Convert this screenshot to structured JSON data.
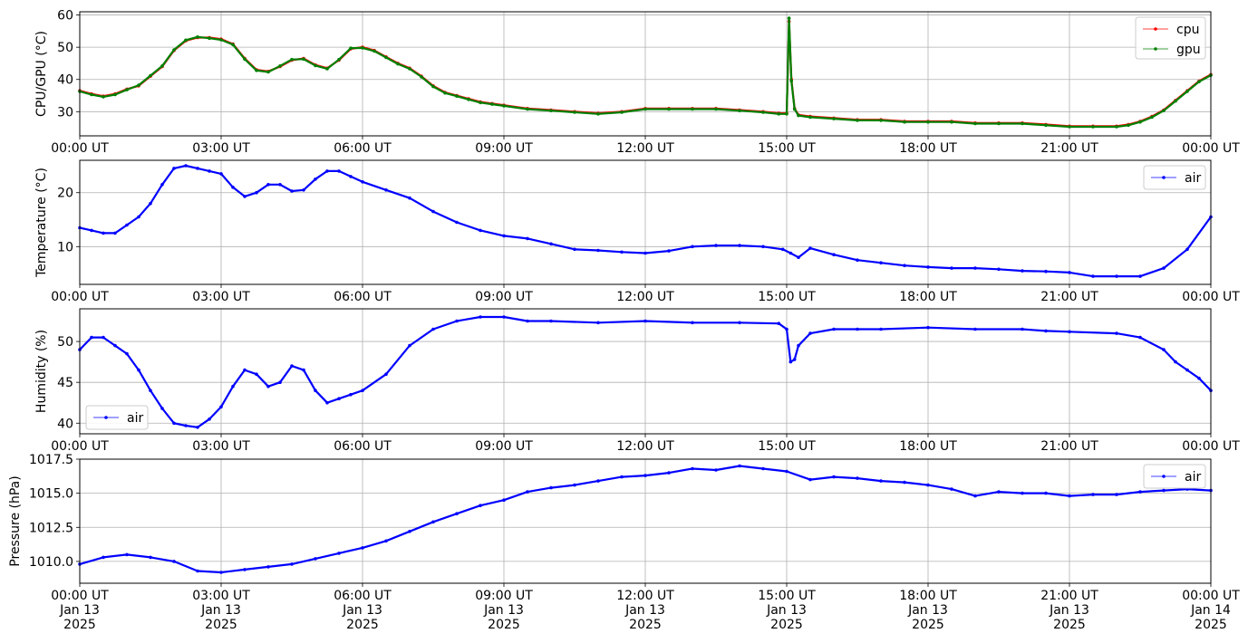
{
  "chart_data": [
    {
      "type": "line",
      "ylabel": "CPU/GPU (°C)",
      "ylim": [
        22.5,
        61
      ],
      "yticks": [
        30,
        40,
        50,
        60
      ],
      "grid": true,
      "legend_position": "upper-right",
      "x_tick_labels": [
        "00:00 UT",
        "03:00 UT",
        "06:00 UT",
        "09:00 UT",
        "12:00 UT",
        "15:00 UT",
        "18:00 UT",
        "21:00 UT",
        "00:00 UT"
      ],
      "series": [
        {
          "name": "cpu",
          "color": "#ff0000",
          "x": [
            "00:00",
            "00:15",
            "00:30",
            "00:45",
            "01:00",
            "01:15",
            "01:30",
            "01:45",
            "02:00",
            "02:15",
            "02:30",
            "02:45",
            "03:00",
            "03:15",
            "03:30",
            "03:45",
            "04:00",
            "04:15",
            "04:30",
            "04:45",
            "05:00",
            "05:15",
            "05:30",
            "05:45",
            "06:00",
            "06:15",
            "06:30",
            "06:45",
            "07:00",
            "07:15",
            "07:30",
            "07:45",
            "08:00",
            "08:15",
            "08:30",
            "08:45",
            "09:00",
            "09:30",
            "10:00",
            "10:30",
            "11:00",
            "11:30",
            "12:00",
            "12:30",
            "13:00",
            "13:30",
            "14:00",
            "14:30",
            "14:50",
            "15:00",
            "15:03",
            "15:06",
            "15:10",
            "15:15",
            "15:30",
            "16:00",
            "16:30",
            "17:00",
            "17:30",
            "18:00",
            "18:30",
            "19:00",
            "19:30",
            "20:00",
            "20:30",
            "21:00",
            "21:30",
            "22:00",
            "22:15",
            "22:30",
            "22:45",
            "23:00",
            "23:15",
            "23:30",
            "23:45",
            "24:00"
          ],
          "y": [
            36.5,
            35.5,
            34.8,
            35.5,
            37,
            38,
            41,
            44,
            49,
            52,
            53,
            53,
            52.5,
            51,
            46.5,
            43,
            42.5,
            44,
            46,
            46.5,
            44.5,
            43.5,
            46,
            49.5,
            50,
            49,
            47,
            45,
            43.5,
            41,
            38,
            36,
            35,
            34,
            33,
            32.5,
            32,
            31,
            30.5,
            30,
            29.5,
            30,
            31,
            31,
            31,
            31,
            30.5,
            30,
            29.5,
            29.5,
            58,
            40,
            31,
            29,
            28.5,
            28,
            27.5,
            27.5,
            27,
            27,
            27,
            26.5,
            26.5,
            26.5,
            26,
            25.5,
            25.5,
            25.5,
            26,
            27,
            28.5,
            30.5,
            33.5,
            36.5,
            39.5,
            41.5
          ]
        },
        {
          "name": "gpu",
          "color": "#008000",
          "x": [
            "00:00",
            "00:15",
            "00:30",
            "00:45",
            "01:00",
            "01:15",
            "01:30",
            "01:45",
            "02:00",
            "02:15",
            "02:30",
            "02:45",
            "03:00",
            "03:15",
            "03:30",
            "03:45",
            "04:00",
            "04:15",
            "04:30",
            "04:45",
            "05:00",
            "05:15",
            "05:30",
            "05:45",
            "06:00",
            "06:15",
            "06:30",
            "06:45",
            "07:00",
            "07:15",
            "07:30",
            "07:45",
            "08:00",
            "08:15",
            "08:30",
            "08:45",
            "09:00",
            "09:30",
            "10:00",
            "10:30",
            "11:00",
            "11:30",
            "12:00",
            "12:30",
            "13:00",
            "13:30",
            "14:00",
            "14:30",
            "14:50",
            "15:00",
            "15:03",
            "15:06",
            "15:10",
            "15:15",
            "15:30",
            "16:00",
            "16:30",
            "17:00",
            "17:30",
            "18:00",
            "18:30",
            "19:00",
            "19:30",
            "20:00",
            "20:30",
            "21:00",
            "21:30",
            "22:00",
            "22:15",
            "22:30",
            "22:45",
            "23:00",
            "23:15",
            "23:30",
            "23:45",
            "24:00"
          ],
          "y": [
            36.3,
            35.3,
            34.6,
            35.3,
            36.8,
            38.2,
            41.2,
            44.2,
            49.2,
            52.2,
            53.2,
            52.8,
            52.3,
            50.8,
            46.3,
            42.8,
            42.3,
            44.2,
            46.2,
            46.3,
            44.3,
            43.3,
            46.2,
            49.7,
            49.8,
            48.8,
            46.8,
            44.8,
            43.3,
            40.8,
            37.8,
            35.8,
            34.8,
            33.8,
            32.8,
            32.3,
            31.8,
            30.8,
            30.3,
            29.8,
            29.3,
            29.8,
            30.8,
            30.8,
            30.8,
            30.8,
            30.3,
            29.8,
            29.3,
            29.3,
            59,
            39.5,
            30.8,
            28.8,
            28.3,
            27.8,
            27.3,
            27.3,
            26.8,
            26.8,
            26.8,
            26.3,
            26.3,
            26.3,
            25.8,
            25.3,
            25.3,
            25.3,
            25.8,
            26.8,
            28.3,
            30.3,
            33.3,
            36.3,
            39.3,
            41.3
          ]
        }
      ]
    },
    {
      "type": "line",
      "ylabel": "Temperature (°C)",
      "ylim": [
        3,
        26
      ],
      "yticks": [
        10,
        20
      ],
      "grid": true,
      "legend_position": "upper-right",
      "x_tick_labels": [
        "00:00 UT",
        "03:00 UT",
        "06:00 UT",
        "09:00 UT",
        "12:00 UT",
        "15:00 UT",
        "18:00 UT",
        "21:00 UT",
        "00:00 UT"
      ],
      "series": [
        {
          "name": "air",
          "color": "#0000ff",
          "x": [
            "00:00",
            "00:15",
            "00:30",
            "00:45",
            "01:00",
            "01:15",
            "01:30",
            "01:45",
            "02:00",
            "02:15",
            "02:30",
            "02:45",
            "03:00",
            "03:15",
            "03:30",
            "03:45",
            "04:00",
            "04:15",
            "04:30",
            "04:45",
            "05:00",
            "05:15",
            "05:30",
            "05:45",
            "06:00",
            "06:30",
            "07:00",
            "07:30",
            "08:00",
            "08:30",
            "09:00",
            "09:30",
            "10:00",
            "10:30",
            "11:00",
            "11:30",
            "12:00",
            "12:30",
            "13:00",
            "13:30",
            "14:00",
            "14:30",
            "14:55",
            "15:05",
            "15:15",
            "15:30",
            "16:00",
            "16:30",
            "17:00",
            "17:30",
            "18:00",
            "18:30",
            "19:00",
            "19:30",
            "20:00",
            "20:30",
            "21:00",
            "21:30",
            "22:00",
            "22:30",
            "23:00",
            "23:30",
            "24:00"
          ],
          "y": [
            13.5,
            13,
            12.5,
            12.5,
            14,
            15.5,
            18,
            21.5,
            24.5,
            25,
            24.5,
            24,
            23.5,
            21,
            19.3,
            20,
            21.5,
            21.5,
            20.3,
            20.5,
            22.5,
            24,
            24,
            23,
            22,
            20.5,
            19,
            16.5,
            14.5,
            13,
            12,
            11.5,
            10.5,
            9.5,
            9.3,
            9,
            8.8,
            9.2,
            10,
            10.2,
            10.2,
            10,
            9.5,
            8.8,
            8,
            9.7,
            8.5,
            7.5,
            7,
            6.5,
            6.2,
            6,
            6,
            5.8,
            5.5,
            5.4,
            5.2,
            4.5,
            4.5,
            4.5,
            6,
            9.5,
            15.5
          ]
        }
      ]
    },
    {
      "type": "line",
      "ylabel": "Humidity (%)",
      "ylim": [
        38.7,
        54
      ],
      "yticks": [
        40,
        45,
        50
      ],
      "grid": true,
      "legend_position": "lower-left",
      "x_tick_labels": [
        "00:00 UT",
        "03:00 UT",
        "06:00 UT",
        "09:00 UT",
        "12:00 UT",
        "15:00 UT",
        "18:00 UT",
        "21:00 UT",
        "00:00 UT"
      ],
      "series": [
        {
          "name": "air",
          "color": "#0000ff",
          "x": [
            "00:00",
            "00:15",
            "00:30",
            "00:45",
            "01:00",
            "01:15",
            "01:30",
            "01:45",
            "02:00",
            "02:15",
            "02:30",
            "02:45",
            "03:00",
            "03:15",
            "03:30",
            "03:45",
            "04:00",
            "04:15",
            "04:30",
            "04:45",
            "05:00",
            "05:15",
            "05:30",
            "05:45",
            "06:00",
            "06:30",
            "07:00",
            "07:30",
            "08:00",
            "08:30",
            "09:00",
            "09:30",
            "10:00",
            "11:00",
            "12:00",
            "13:00",
            "14:00",
            "14:50",
            "15:00",
            "15:05",
            "15:10",
            "15:15",
            "15:30",
            "16:00",
            "16:30",
            "17:00",
            "18:00",
            "19:00",
            "20:00",
            "20:30",
            "21:00",
            "22:00",
            "22:30",
            "23:00",
            "23:15",
            "23:30",
            "23:45",
            "24:00"
          ],
          "y": [
            49,
            50.5,
            50.5,
            49.5,
            48.5,
            46.5,
            44,
            41.8,
            40,
            39.7,
            39.5,
            40.5,
            42,
            44.5,
            46.5,
            46,
            44.5,
            45,
            47,
            46.5,
            44,
            42.5,
            43,
            43.5,
            44,
            46,
            49.5,
            51.5,
            52.5,
            53,
            53,
            52.5,
            52.5,
            52.3,
            52.5,
            52.3,
            52.3,
            52.2,
            51.5,
            47.5,
            47.8,
            49.5,
            51,
            51.5,
            51.5,
            51.5,
            51.7,
            51.5,
            51.5,
            51.3,
            51.2,
            51,
            50.5,
            49,
            47.5,
            46.5,
            45.5,
            44
          ]
        }
      ]
    },
    {
      "type": "line",
      "ylabel": "Pressure (hPa)",
      "ylim": [
        1008.4,
        1017.5
      ],
      "yticks": [
        1010.0,
        1012.5,
        1015.0,
        1017.5
      ],
      "ytick_labels": [
        "1010.0",
        "1012.5",
        "1015.0",
        "1017.5"
      ],
      "grid": true,
      "legend_position": "upper-right",
      "x_tick_labels": [
        "00:00 UT\nJan 13\n2025",
        "03:00 UT\nJan 13\n2025",
        "06:00 UT\nJan 13\n2025",
        "09:00 UT\nJan 13\n2025",
        "12:00 UT\nJan 13\n2025",
        "15:00 UT\nJan 13\n2025",
        "18:00 UT\nJan 13\n2025",
        "21:00 UT\nJan 13\n2025",
        "00:00 UT\nJan 14\n2025"
      ],
      "series": [
        {
          "name": "air",
          "color": "#0000ff",
          "x": [
            "00:00",
            "00:30",
            "01:00",
            "01:30",
            "02:00",
            "02:30",
            "03:00",
            "03:30",
            "04:00",
            "04:30",
            "05:00",
            "05:30",
            "06:00",
            "06:30",
            "07:00",
            "07:30",
            "08:00",
            "08:30",
            "09:00",
            "09:30",
            "10:00",
            "10:30",
            "11:00",
            "11:30",
            "12:00",
            "12:30",
            "13:00",
            "13:30",
            "14:00",
            "14:30",
            "15:00",
            "15:30",
            "16:00",
            "16:30",
            "17:00",
            "17:30",
            "18:00",
            "18:30",
            "19:00",
            "19:30",
            "20:00",
            "20:30",
            "21:00",
            "21:30",
            "22:00",
            "22:30",
            "23:00",
            "23:30",
            "24:00"
          ],
          "y": [
            1009.8,
            1010.3,
            1010.5,
            1010.3,
            1010.0,
            1009.3,
            1009.2,
            1009.4,
            1009.6,
            1009.8,
            1010.2,
            1010.6,
            1011.0,
            1011.5,
            1012.2,
            1012.9,
            1013.5,
            1014.1,
            1014.5,
            1015.1,
            1015.4,
            1015.6,
            1015.9,
            1016.2,
            1016.3,
            1016.5,
            1016.8,
            1016.7,
            1017.0,
            1016.8,
            1016.6,
            1016.0,
            1016.2,
            1016.1,
            1015.9,
            1015.8,
            1015.6,
            1015.3,
            1014.8,
            1015.1,
            1015.0,
            1015.0,
            1014.8,
            1014.9,
            1014.9,
            1015.1,
            1015.2,
            1015.3,
            1015.2
          ]
        }
      ]
    }
  ]
}
